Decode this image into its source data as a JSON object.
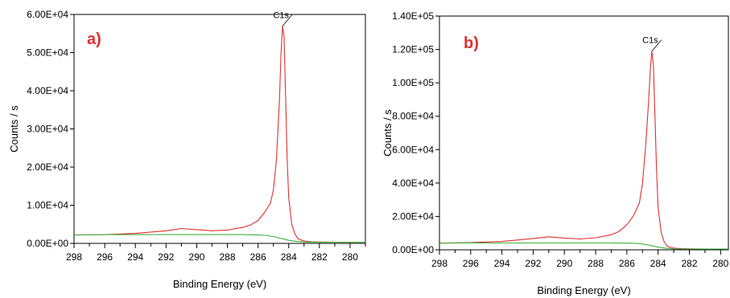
{
  "chart_data": [
    {
      "type": "line",
      "panel_label": "a)",
      "xlabel": "Binding Energy (eV)",
      "ylabel": "Counts / s",
      "xlim": [
        298,
        279
      ],
      "ylim": [
        0,
        60000
      ],
      "x_reversed": true,
      "x_ticks": [
        298,
        296,
        294,
        292,
        290,
        288,
        286,
        284,
        282,
        280
      ],
      "y_ticks": [
        0,
        10000,
        20000,
        30000,
        40000,
        50000,
        60000
      ],
      "y_tick_labels": [
        "0.00E+00",
        "1.00E+04",
        "2.00E+04",
        "3.00E+04",
        "4.00E+04",
        "5.00E+04",
        "6.00E+04"
      ],
      "annotation": {
        "text": "C1s",
        "x": 284.4,
        "y": 57000
      },
      "series": [
        {
          "color": "#e03030",
          "x": [
            298,
            296,
            294,
            292,
            291,
            290,
            289,
            288,
            287,
            286.5,
            286,
            285.6,
            285.2,
            285.0,
            284.8,
            284.6,
            284.5,
            284.4,
            284.3,
            284.2,
            284.1,
            284.0,
            283.8,
            283.6,
            283.4,
            283.0,
            282.5,
            282,
            281,
            280,
            279
          ],
          "values": [
            2200,
            2300,
            2600,
            3300,
            3900,
            3600,
            3300,
            3500,
            4200,
            4800,
            6000,
            8000,
            10500,
            14000,
            22000,
            38000,
            50000,
            57000,
            54000,
            38000,
            22000,
            12000,
            5000,
            2500,
            1200,
            600,
            400,
            350,
            320,
            300,
            300
          ]
        },
        {
          "color": "#40b040",
          "x": [
            298,
            296,
            294,
            292,
            290,
            288,
            287,
            286,
            285.5,
            285,
            284.5,
            284,
            283.5,
            283,
            282.5,
            282,
            280,
            279
          ],
          "values": [
            2200,
            2300,
            2300,
            2300,
            2300,
            2300,
            2300,
            2200,
            2100,
            1800,
            1300,
            800,
            500,
            380,
            330,
            300,
            300,
            300
          ]
        }
      ]
    },
    {
      "type": "line",
      "panel_label": "b)",
      "xlabel": "Binding Energy (eV)",
      "ylabel": "Counts / s",
      "xlim": [
        298,
        279.5
      ],
      "ylim": [
        0,
        140000
      ],
      "x_reversed": true,
      "x_ticks": [
        298,
        296,
        294,
        292,
        290,
        288,
        286,
        284,
        282,
        280
      ],
      "y_ticks": [
        0,
        20000,
        40000,
        60000,
        80000,
        100000,
        120000,
        140000
      ],
      "y_tick_labels": [
        "0.00E+00",
        "2.00E+04",
        "4.00E+04",
        "6.00E+04",
        "8.00E+04",
        "1.00E+05",
        "1.20E+05",
        "1.40E+05"
      ],
      "annotation": {
        "text": "C1s",
        "x": 284.4,
        "y": 119000
      },
      "series": [
        {
          "color": "#e03030",
          "x": [
            298,
            296,
            294,
            292,
            291,
            290,
            289,
            288,
            287,
            286.5,
            286,
            285.6,
            285.2,
            285.0,
            284.8,
            284.6,
            284.5,
            284.4,
            284.3,
            284.2,
            284.1,
            284.0,
            283.8,
            283.6,
            283.4,
            283.0,
            282.5,
            282,
            281,
            280,
            279.5
          ],
          "values": [
            4000,
            4300,
            5000,
            6800,
            7800,
            7000,
            6500,
            7200,
            9000,
            11000,
            15000,
            20000,
            28000,
            40000,
            62000,
            90000,
            108000,
            119000,
            110000,
            80000,
            48000,
            25000,
            10000,
            4500,
            2000,
            1000,
            700,
            600,
            500,
            500,
            500
          ]
        },
        {
          "color": "#40b040",
          "x": [
            298,
            296,
            294,
            292,
            290,
            288,
            287,
            286,
            285.5,
            285,
            284.5,
            284,
            283.5,
            283,
            282.5,
            282,
            280,
            279.5
          ],
          "values": [
            4000,
            4100,
            4100,
            4100,
            4100,
            4100,
            4100,
            4000,
            3900,
            3500,
            2600,
            1600,
            900,
            600,
            500,
            500,
            500,
            500
          ]
        }
      ]
    }
  ]
}
